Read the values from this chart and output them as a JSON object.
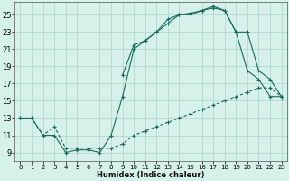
{
  "xlabel": "Humidex (Indice chaleur)",
  "xlim": [
    -0.5,
    23.5
  ],
  "ylim": [
    8.0,
    26.5
  ],
  "xticks": [
    0,
    1,
    2,
    3,
    4,
    5,
    6,
    7,
    8,
    9,
    10,
    11,
    12,
    13,
    14,
    15,
    16,
    17,
    18,
    19,
    20,
    21,
    22,
    23
  ],
  "yticks": [
    9,
    11,
    13,
    15,
    17,
    19,
    21,
    23,
    25
  ],
  "bg_color": "#d6f0ea",
  "line_color": "#1a6b5a",
  "grid_color": "#aed4cc",
  "line1_x": [
    0,
    1,
    2,
    3,
    4,
    5,
    6,
    7,
    8,
    9,
    10,
    11,
    12,
    13,
    14,
    15,
    16,
    17,
    18,
    19,
    20,
    21,
    22,
    23
  ],
  "line1_y": [
    13,
    13,
    11,
    11,
    9,
    9.3,
    9.3,
    9,
    11,
    15.5,
    21,
    22,
    23,
    24.5,
    25,
    25,
    25.5,
    26,
    25.5,
    23,
    18.5,
    17.5,
    15.5,
    15.5
  ],
  "line2_x": [
    0,
    1,
    2,
    3,
    4,
    5,
    6,
    7,
    8,
    9,
    10,
    11,
    12,
    13,
    14,
    15,
    16,
    17,
    18,
    19,
    20,
    21,
    22,
    23
  ],
  "line2_y": [
    13,
    13,
    11,
    12,
    9.5,
    9.5,
    9.5,
    9.5,
    9.5,
    10,
    11,
    11.5,
    12,
    12.5,
    13,
    13.5,
    14,
    14.5,
    15,
    15.5,
    16,
    16.5,
    16.5,
    15.5
  ],
  "line3_x": [
    9,
    10,
    11,
    12,
    13,
    14,
    15,
    16,
    17,
    18,
    19,
    20,
    21,
    22,
    23
  ],
  "line3_y": [
    18,
    21.5,
    22,
    23,
    24,
    25,
    25.2,
    25.5,
    25.8,
    25.5,
    23,
    23,
    18.5,
    17.5,
    15.5
  ]
}
